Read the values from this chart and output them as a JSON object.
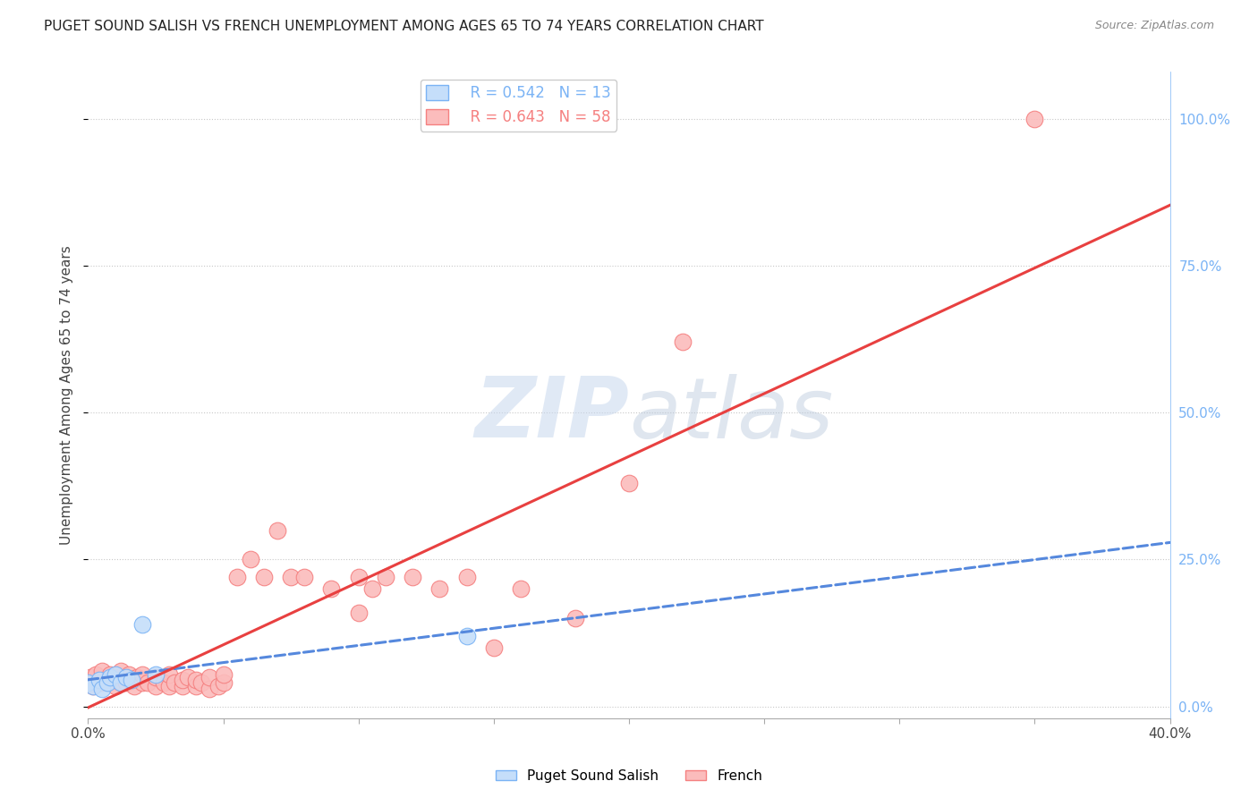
{
  "title": "PUGET SOUND SALISH VS FRENCH UNEMPLOYMENT AMONG AGES 65 TO 74 YEARS CORRELATION CHART",
  "source": "Source: ZipAtlas.com",
  "ylabel": "Unemployment Among Ages 65 to 74 years",
  "xlim": [
    0.0,
    0.4
  ],
  "ylim": [
    -0.02,
    1.08
  ],
  "xticks": [
    0.0,
    0.05,
    0.1,
    0.15,
    0.2,
    0.25,
    0.3,
    0.35,
    0.4
  ],
  "ytick_positions": [
    0.0,
    0.25,
    0.5,
    0.75,
    1.0
  ],
  "grid_color": "#c8c8c8",
  "background_color": "#ffffff",
  "blue_color": "#7ab3f5",
  "blue_fill": "#c5defa",
  "blue_line_color": "#5588dd",
  "pink_color": "#f58080",
  "pink_fill": "#fbbcbc",
  "pink_line_color": "#e84040",
  "blue_r": 0.542,
  "blue_n": 13,
  "pink_r": 0.643,
  "pink_n": 58,
  "salish_x": [
    0.0,
    0.002,
    0.004,
    0.005,
    0.007,
    0.008,
    0.01,
    0.012,
    0.014,
    0.016,
    0.02,
    0.025,
    0.14
  ],
  "salish_y": [
    0.04,
    0.035,
    0.045,
    0.03,
    0.04,
    0.05,
    0.055,
    0.04,
    0.05,
    0.045,
    0.14,
    0.055,
    0.12
  ],
  "french_x": [
    0.0,
    0.001,
    0.002,
    0.003,
    0.005,
    0.005,
    0.007,
    0.008,
    0.008,
    0.01,
    0.01,
    0.012,
    0.012,
    0.014,
    0.015,
    0.015,
    0.017,
    0.018,
    0.02,
    0.02,
    0.022,
    0.025,
    0.025,
    0.028,
    0.03,
    0.03,
    0.032,
    0.035,
    0.035,
    0.037,
    0.04,
    0.04,
    0.042,
    0.045,
    0.045,
    0.048,
    0.05,
    0.05,
    0.055,
    0.06,
    0.065,
    0.07,
    0.075,
    0.08,
    0.09,
    0.1,
    0.1,
    0.105,
    0.11,
    0.12,
    0.13,
    0.14,
    0.15,
    0.16,
    0.18,
    0.2,
    0.22,
    0.35
  ],
  "french_y": [
    0.04,
    0.05,
    0.035,
    0.055,
    0.04,
    0.06,
    0.04,
    0.045,
    0.055,
    0.035,
    0.05,
    0.04,
    0.06,
    0.04,
    0.045,
    0.055,
    0.035,
    0.05,
    0.04,
    0.055,
    0.04,
    0.035,
    0.05,
    0.04,
    0.035,
    0.055,
    0.04,
    0.035,
    0.045,
    0.05,
    0.035,
    0.045,
    0.04,
    0.03,
    0.05,
    0.035,
    0.04,
    0.055,
    0.22,
    0.25,
    0.22,
    0.3,
    0.22,
    0.22,
    0.2,
    0.22,
    0.16,
    0.2,
    0.22,
    0.22,
    0.2,
    0.22,
    0.1,
    0.2,
    0.15,
    0.38,
    0.62,
    1.0
  ],
  "watermark_zip": "ZIP",
  "watermark_atlas": "atlas"
}
